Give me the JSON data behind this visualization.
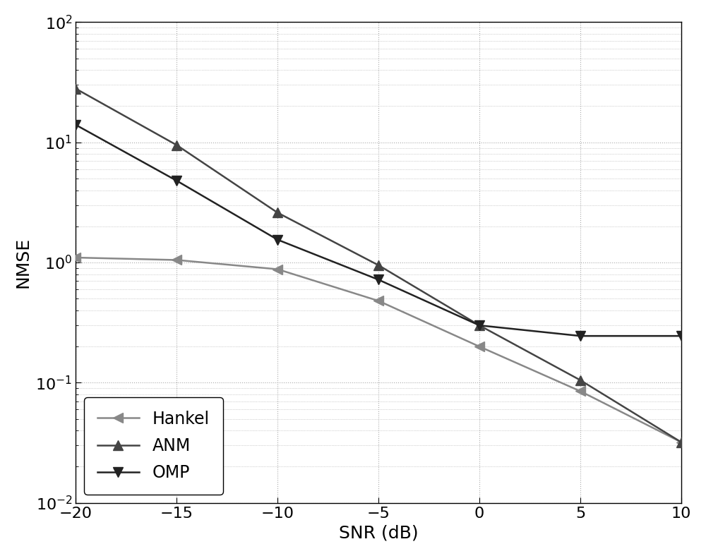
{
  "snr": [
    -20,
    -15,
    -10,
    -5,
    0,
    5,
    10
  ],
  "hankel": [
    1.1,
    1.05,
    0.88,
    0.48,
    0.2,
    0.085,
    0.032
  ],
  "anm": [
    28.0,
    9.5,
    2.6,
    0.95,
    0.3,
    0.105,
    0.032
  ],
  "omp": [
    14.0,
    4.8,
    1.55,
    0.72,
    0.3,
    0.245,
    0.245
  ],
  "hankel_color": "#888888",
  "anm_color": "#444444",
  "omp_color": "#222222",
  "xlabel": "SNR (dB)",
  "ylabel": "NMSE",
  "xlim": [
    -20,
    10
  ],
  "ylim_log": [
    -2,
    2
  ],
  "grid_color": "#aaaaaa",
  "background_color": "#ffffff",
  "legend_labels": [
    "Hankel",
    "ANM",
    "OMP"
  ],
  "label_fontsize": 18,
  "tick_fontsize": 16,
  "legend_fontsize": 17,
  "marker_size": 10,
  "line_width": 1.8
}
